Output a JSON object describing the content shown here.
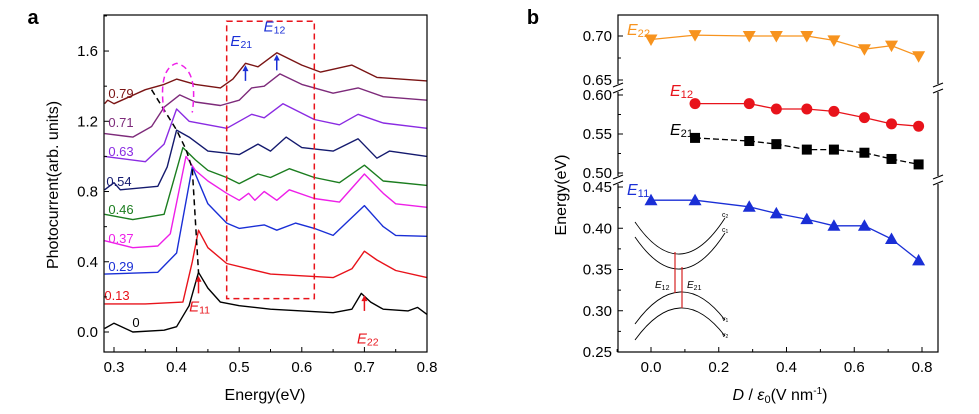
{
  "chart_data": [
    {
      "panel_label": "a",
      "type": "line",
      "xlabel": "Energy(eV)",
      "ylabel": "Photocurrent(arb. units)",
      "xlim": [
        0.284,
        0.8
      ],
      "ylim": [
        -0.11,
        1.8
      ],
      "xticks": [
        "0.3",
        "0.4",
        "0.5",
        "0.6",
        "0.7",
        "0.8"
      ],
      "yticks": [
        "0.0",
        "0.4",
        "0.8",
        "1.2",
        "1.6"
      ],
      "grid": false,
      "series": [
        {
          "name": "0",
          "color": "#000000",
          "x": [
            0.285,
            0.3,
            0.33,
            0.38,
            0.4,
            0.42,
            0.435,
            0.45,
            0.47,
            0.5,
            0.55,
            0.6,
            0.65,
            0.68,
            0.695,
            0.71,
            0.73,
            0.77,
            0.785,
            0.8
          ],
          "y": [
            0.02,
            0.05,
            0.0,
            0.01,
            0.03,
            0.15,
            0.34,
            0.25,
            0.17,
            0.15,
            0.13,
            0.12,
            0.11,
            0.13,
            0.22,
            0.17,
            0.13,
            0.12,
            0.14,
            0.1
          ]
        },
        {
          "name": "0.13",
          "color": "#e8131b",
          "x": [
            0.285,
            0.35,
            0.41,
            0.425,
            0.435,
            0.45,
            0.48,
            0.55,
            0.65,
            0.68,
            0.7,
            0.72,
            0.75,
            0.8
          ],
          "y": [
            0.16,
            0.16,
            0.17,
            0.4,
            0.58,
            0.48,
            0.39,
            0.33,
            0.31,
            0.36,
            0.46,
            0.41,
            0.35,
            0.31
          ]
        },
        {
          "name": "0.29",
          "color": "#1a2fd6",
          "x": [
            0.285,
            0.37,
            0.4,
            0.425,
            0.45,
            0.48,
            0.5,
            0.54,
            0.56,
            0.59,
            0.62,
            0.65,
            0.7,
            0.73,
            0.75,
            0.8
          ],
          "y": [
            0.33,
            0.34,
            0.45,
            0.94,
            0.73,
            0.62,
            0.59,
            0.61,
            0.58,
            0.62,
            0.59,
            0.55,
            0.72,
            0.6,
            0.55,
            0.545
          ]
        },
        {
          "name": "0.37",
          "color": "#ee1fe8",
          "x": [
            0.285,
            0.33,
            0.37,
            0.39,
            0.415,
            0.43,
            0.45,
            0.48,
            0.5,
            0.515,
            0.525,
            0.54,
            0.56,
            0.58,
            0.62,
            0.66,
            0.7,
            0.73,
            0.75,
            0.8
          ],
          "y": [
            0.52,
            0.48,
            0.49,
            0.56,
            1.0,
            0.92,
            0.86,
            0.79,
            0.75,
            0.79,
            0.75,
            0.8,
            0.75,
            0.81,
            0.76,
            0.74,
            0.9,
            0.79,
            0.73,
            0.71
          ]
        },
        {
          "name": "0.46",
          "color": "#1b7d1f",
          "x": [
            0.285,
            0.33,
            0.38,
            0.41,
            0.43,
            0.45,
            0.48,
            0.5,
            0.53,
            0.55,
            0.58,
            0.62,
            0.66,
            0.7,
            0.73,
            0.8
          ],
          "y": [
            0.67,
            0.64,
            0.67,
            1.05,
            0.98,
            0.92,
            0.88,
            0.845,
            0.9,
            0.88,
            0.93,
            0.88,
            0.85,
            0.95,
            0.86,
            0.835
          ]
        },
        {
          "name": "0.54",
          "color": "#141a6e",
          "x": [
            0.285,
            0.3,
            0.31,
            0.37,
            0.385,
            0.4,
            0.42,
            0.45,
            0.5,
            0.53,
            0.55,
            0.575,
            0.6,
            0.65,
            0.69,
            0.72,
            0.74,
            0.8
          ],
          "y": [
            0.81,
            0.85,
            0.81,
            0.83,
            0.94,
            1.15,
            1.11,
            1.03,
            1.01,
            1.07,
            1.03,
            1.11,
            1.05,
            1.03,
            1.1,
            0.99,
            1.03,
            1.0
          ]
        },
        {
          "name": "0.63",
          "color": "#8a2be2",
          "x": [
            0.285,
            0.35,
            0.38,
            0.4,
            0.42,
            0.45,
            0.48,
            0.52,
            0.54,
            0.57,
            0.62,
            0.66,
            0.69,
            0.73,
            0.8
          ],
          "y": [
            1.0,
            0.97,
            1.07,
            1.27,
            1.2,
            1.18,
            1.16,
            1.24,
            1.22,
            1.3,
            1.21,
            1.18,
            1.24,
            1.19,
            1.16
          ]
        },
        {
          "name": "0.71",
          "color": "#7d2a7a",
          "x": [
            0.285,
            0.33,
            0.36,
            0.38,
            0.405,
            0.43,
            0.47,
            0.5,
            0.52,
            0.54,
            0.565,
            0.6,
            0.65,
            0.69,
            0.73,
            0.8
          ],
          "y": [
            1.13,
            1.11,
            1.17,
            1.28,
            1.35,
            1.31,
            1.29,
            1.32,
            1.39,
            1.4,
            1.47,
            1.41,
            1.36,
            1.39,
            1.34,
            1.32
          ]
        },
        {
          "name": "0.79",
          "color": "#7a1414",
          "x": [
            0.285,
            0.29,
            0.3,
            0.35,
            0.38,
            0.4,
            0.43,
            0.47,
            0.49,
            0.51,
            0.53,
            0.56,
            0.6,
            0.63,
            0.68,
            0.72,
            0.8
          ],
          "y": [
            1.3,
            1.32,
            1.3,
            1.38,
            1.41,
            1.44,
            1.41,
            1.39,
            1.44,
            1.53,
            1.51,
            1.59,
            1.52,
            1.48,
            1.52,
            1.45,
            1.43
          ]
        }
      ],
      "annotations": {
        "E11": {
          "label": "E",
          "sub": "11",
          "color": "#e8131b"
        },
        "E22": {
          "label": "E",
          "sub": "22",
          "color": "#e8131b"
        },
        "E21": {
          "label": "E",
          "sub": "21",
          "color": "#1a2fd6"
        },
        "E12": {
          "label": "E",
          "sub": "12",
          "color": "#1a2fd6"
        },
        "box_color": "#e8131b"
      }
    },
    {
      "panel_label": "b",
      "type": "scatter",
      "xlabel_italic": "D",
      "xlabel_mid": " / ",
      "xlabel_eps": "ε",
      "xlabel_eps_sub": "0",
      "xlabel_unit": "(V nm",
      "xlabel_unit_sup": "-1",
      "xlabel_close": ")",
      "ylabel": "Energy(eV)",
      "xlim": [
        -0.1,
        0.85
      ],
      "xticks": [
        "0.0",
        "0.2",
        "0.4",
        "0.6",
        "0.8"
      ],
      "yticks": [
        "0.70",
        "0.65",
        "0.60",
        "0.55",
        "0.50",
        "0.45",
        "0.40",
        "0.35",
        "0.30",
        "0.25"
      ],
      "y_axis_breaks": [
        [
          0.625,
          0.6
        ],
        [
          0.5,
          0.45
        ]
      ],
      "grid": false,
      "series": [
        {
          "name": "E",
          "sub": "22",
          "color": "#f7931e",
          "marker": "triangle-down",
          "x": [
            0,
            0.13,
            0.29,
            0.37,
            0.46,
            0.54,
            0.63,
            0.71,
            0.79
          ],
          "y": [
            0.696,
            0.701,
            0.7,
            0.7,
            0.7,
            0.695,
            0.685,
            0.689,
            0.677
          ]
        },
        {
          "name": "E",
          "sub": "12",
          "color": "#e8131b",
          "marker": "circle",
          "x": [
            0.13,
            0.29,
            0.37,
            0.46,
            0.54,
            0.63,
            0.71,
            0.79
          ],
          "y": [
            0.589,
            0.589,
            0.582,
            0.582,
            0.579,
            0.571,
            0.563,
            0.56
          ]
        },
        {
          "name": "E",
          "sub": "21",
          "color": "#000000",
          "marker": "square",
          "x": [
            0.13,
            0.29,
            0.37,
            0.46,
            0.54,
            0.63,
            0.71,
            0.79
          ],
          "y": [
            0.545,
            0.541,
            0.537,
            0.53,
            0.53,
            0.526,
            0.518,
            0.511
          ]
        },
        {
          "name": "E",
          "sub": "11",
          "color": "#1a2fd6",
          "marker": "triangle-up",
          "x": [
            0,
            0.13,
            0.29,
            0.37,
            0.46,
            0.54,
            0.63,
            0.71,
            0.79
          ],
          "y": [
            0.434,
            0.434,
            0.426,
            0.418,
            0.411,
            0.403,
            0.403,
            0.387,
            0.361
          ]
        }
      ],
      "inset": {
        "bands": [
          "c2",
          "c1",
          "v1",
          "v2"
        ],
        "transitions": [
          {
            "label": "E",
            "sub": "12"
          },
          {
            "label": "E",
            "sub": "21"
          }
        ],
        "transition_color": "#d62020"
      }
    }
  ]
}
